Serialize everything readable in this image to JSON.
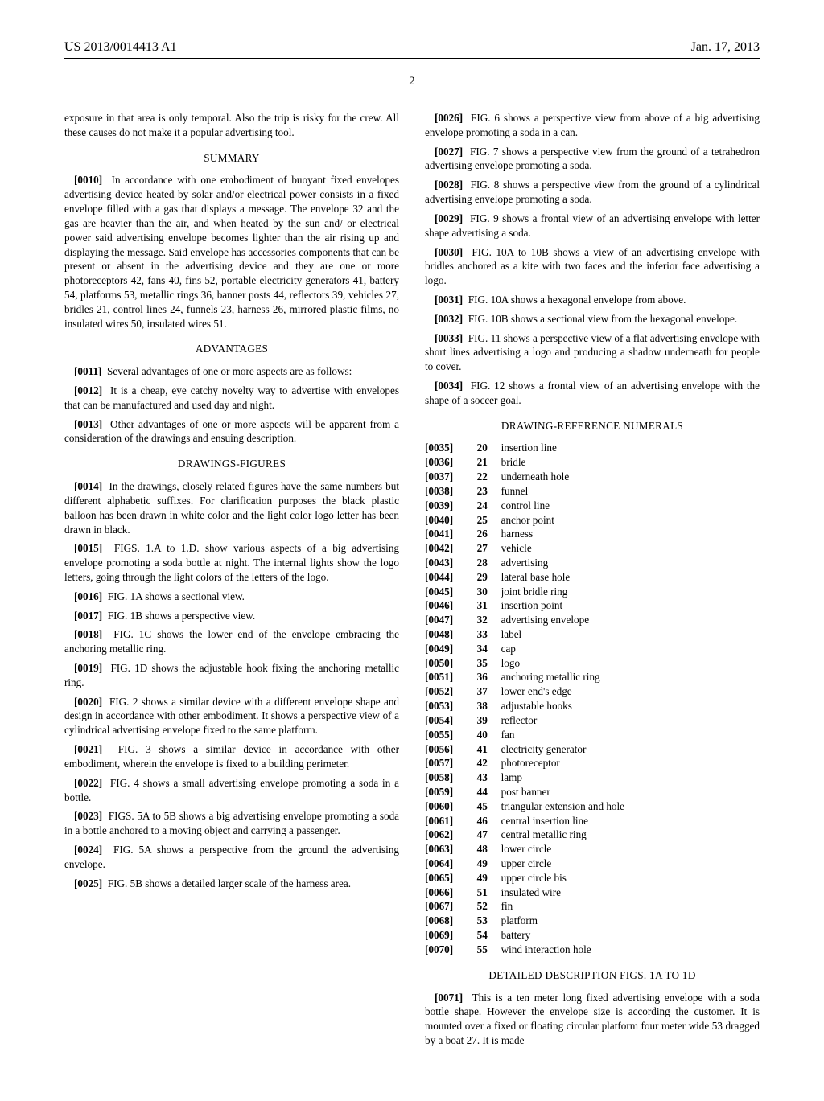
{
  "header": {
    "pub_number": "US 2013/0014413 A1",
    "pub_date": "Jan. 17, 2013"
  },
  "page_number": "2",
  "left_column": {
    "intro": "exposure in that area is only temporal. Also the trip is risky for the crew. All these causes do not make it a popular advertising tool.",
    "heading_summary": "SUMMARY",
    "p0010_num": "[0010]",
    "p0010": "In accordance with one embodiment of buoyant fixed envelopes advertising device heated by solar and/or electrical power consists in a fixed envelope filled with a gas that displays a message. The envelope 32 and the gas are heavier than the air, and when heated by the sun and/ or electrical power said advertising envelope becomes lighter than the air rising up and displaying the message. Said envelope has accessories components that can be present or absent in the advertising device and they are one or more photoreceptors 42, fans 40, fins 52, portable electricity generators 41, battery 54, platforms 53, metallic rings 36, banner posts 44, reflectors 39, vehicles 27, bridles 21, control lines 24, funnels 23, harness 26, mirrored plastic films, no insulated wires 50, insulated wires 51.",
    "heading_advantages": "ADVANTAGES",
    "p0011_num": "[0011]",
    "p0011": "Several advantages of one or more aspects are as follows:",
    "p0012_num": "[0012]",
    "p0012": "It is a cheap, eye catchy novelty way to advertise with envelopes that can be manufactured and used day and night.",
    "p0013_num": "[0013]",
    "p0013": "Other advantages of one or more aspects will be apparent from a consideration of the drawings and ensuing description.",
    "heading_drawings": "DRAWINGS-FIGURES",
    "p0014_num": "[0014]",
    "p0014": "In the drawings, closely related figures have the same numbers but different alphabetic suffixes. For clarification purposes the black plastic balloon has been drawn in white color and the light color logo letter has been drawn in black.",
    "p0015_num": "[0015]",
    "p0015": "FIGS. 1.A to 1.D. show various aspects of a big advertising envelope promoting a soda bottle at night. The internal lights show the logo letters, going through the light colors of the letters of the logo.",
    "p0016_num": "[0016]",
    "p0016": "FIG. 1A shows a sectional view.",
    "p0017_num": "[0017]",
    "p0017": "FIG. 1B shows a perspective view.",
    "p0018_num": "[0018]",
    "p0018": "FIG. 1C shows the lower end of the envelope embracing the anchoring metallic ring.",
    "p0019_num": "[0019]",
    "p0019": "FIG. 1D shows the adjustable hook fixing the anchoring metallic ring.",
    "p0020_num": "[0020]",
    "p0020": "FIG. 2 shows a similar device with a different envelope shape and design in accordance with other embodiment. It shows a perspective view of a cylindrical advertising envelope fixed to the same platform.",
    "p0021_num": "[0021]",
    "p0021": "FIG. 3 shows a similar device in accordance with other embodiment, wherein the envelope is fixed to a building perimeter.",
    "p0022_num": "[0022]",
    "p0022": "FIG. 4 shows a small advertising envelope promoting a soda in a bottle.",
    "p0023_num": "[0023]",
    "p0023": "FIGS. 5A to 5B shows a big advertising envelope promoting a soda in a bottle anchored to a moving object and carrying a passenger.",
    "p0024_num": "[0024]",
    "p0024": "FIG. 5A shows a perspective from the ground the advertising envelope.",
    "p0025_num": "[0025]",
    "p0025": "FIG. 5B shows a detailed larger scale of the harness area."
  },
  "right_column": {
    "p0026_num": "[0026]",
    "p0026": "FIG. 6 shows a perspective view from above of a big advertising envelope promoting a soda in a can.",
    "p0027_num": "[0027]",
    "p0027": "FIG. 7 shows a perspective view from the ground of a tetrahedron advertising envelope promoting a soda.",
    "p0028_num": "[0028]",
    "p0028": "FIG. 8 shows a perspective view from the ground of a cylindrical advertising envelope promoting a soda.",
    "p0029_num": "[0029]",
    "p0029": "FIG. 9 shows a frontal view of an advertising envelope with letter shape advertising a soda.",
    "p0030_num": "[0030]",
    "p0030": "FIG. 10A to 10B shows a view of an advertising envelope with bridles anchored as a kite with two faces and the inferior face advertising a logo.",
    "p0031_num": "[0031]",
    "p0031": "FIG. 10A shows a hexagonal envelope from above.",
    "p0032_num": "[0032]",
    "p0032": "FIG. 10B shows a sectional view from the hexagonal envelope.",
    "p0033_num": "[0033]",
    "p0033": "FIG. 11 shows a perspective view of a flat advertising envelope with short lines advertising a logo and producing a shadow underneath for people to cover.",
    "p0034_num": "[0034]",
    "p0034": "FIG. 12 shows a frontal view of an advertising envelope with the shape of a soccer goal.",
    "heading_refs": "DRAWING-REFERENCE NUMERALS",
    "refs": [
      {
        "pnum": "[0035]",
        "num": "20",
        "label": "insertion line"
      },
      {
        "pnum": "[0036]",
        "num": "21",
        "label": "bridle"
      },
      {
        "pnum": "[0037]",
        "num": "22",
        "label": "underneath hole"
      },
      {
        "pnum": "[0038]",
        "num": "23",
        "label": "funnel"
      },
      {
        "pnum": "[0039]",
        "num": "24",
        "label": "control line"
      },
      {
        "pnum": "[0040]",
        "num": "25",
        "label": "anchor point"
      },
      {
        "pnum": "[0041]",
        "num": "26",
        "label": "harness"
      },
      {
        "pnum": "[0042]",
        "num": "27",
        "label": "vehicle"
      },
      {
        "pnum": "[0043]",
        "num": "28",
        "label": "advertising"
      },
      {
        "pnum": "[0044]",
        "num": "29",
        "label": "lateral base hole"
      },
      {
        "pnum": "[0045]",
        "num": "30",
        "label": "joint bridle ring"
      },
      {
        "pnum": "[0046]",
        "num": "31",
        "label": "insertion point"
      },
      {
        "pnum": "[0047]",
        "num": "32",
        "label": "advertising envelope"
      },
      {
        "pnum": "[0048]",
        "num": "33",
        "label": "label"
      },
      {
        "pnum": "[0049]",
        "num": "34",
        "label": "cap"
      },
      {
        "pnum": "[0050]",
        "num": "35",
        "label": "logo"
      },
      {
        "pnum": "[0051]",
        "num": "36",
        "label": "anchoring metallic ring"
      },
      {
        "pnum": "[0052]",
        "num": "37",
        "label": "lower end's edge"
      },
      {
        "pnum": "[0053]",
        "num": "38",
        "label": "adjustable hooks"
      },
      {
        "pnum": "[0054]",
        "num": "39",
        "label": "reflector"
      },
      {
        "pnum": "[0055]",
        "num": "40",
        "label": "fan"
      },
      {
        "pnum": "[0056]",
        "num": "41",
        "label": "electricity generator"
      },
      {
        "pnum": "[0057]",
        "num": "42",
        "label": "photoreceptor"
      },
      {
        "pnum": "[0058]",
        "num": "43",
        "label": "lamp"
      },
      {
        "pnum": "[0059]",
        "num": "44",
        "label": "post banner"
      },
      {
        "pnum": "[0060]",
        "num": "45",
        "label": "triangular extension and hole"
      },
      {
        "pnum": "[0061]",
        "num": "46",
        "label": "central insertion line"
      },
      {
        "pnum": "[0062]",
        "num": "47",
        "label": "central metallic ring"
      },
      {
        "pnum": "[0063]",
        "num": "48",
        "label": "lower circle"
      },
      {
        "pnum": "[0064]",
        "num": "49",
        "label": "upper circle"
      },
      {
        "pnum": "[0065]",
        "num": "49",
        "label": "upper circle bis"
      },
      {
        "pnum": "[0066]",
        "num": "51",
        "label": "insulated wire"
      },
      {
        "pnum": "[0067]",
        "num": "52",
        "label": "fin"
      },
      {
        "pnum": "[0068]",
        "num": "53",
        "label": "platform"
      },
      {
        "pnum": "[0069]",
        "num": "54",
        "label": "battery"
      },
      {
        "pnum": "[0070]",
        "num": "55",
        "label": "wind interaction hole"
      }
    ],
    "heading_detailed": "DETAILED DESCRIPTION FIGS. 1A TO 1D",
    "p0071_num": "[0071]",
    "p0071": "This is a ten meter long fixed advertising envelope with a soda bottle shape. However the envelope size is according the customer. It is mounted over a fixed or floating circular platform four meter wide 53 dragged by a boat 27. It is made"
  }
}
